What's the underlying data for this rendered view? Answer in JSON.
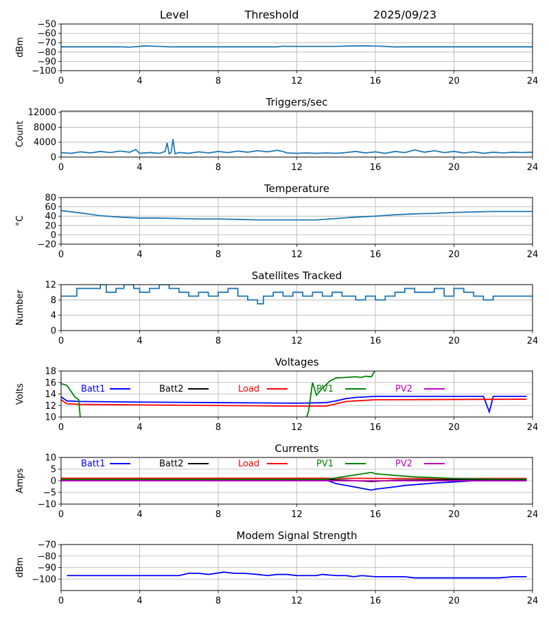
{
  "header": {
    "level_label": "Level",
    "threshold_label": "Threshold",
    "date": "2025/09/23"
  },
  "legend": [
    {
      "name": "Batt1",
      "color": "#0000ff"
    },
    {
      "name": "Batt2",
      "color": "#000000"
    },
    {
      "name": "Load",
      "color": "#ff0000"
    },
    {
      "name": "PV1",
      "color": "#008000"
    },
    {
      "name": "PV2",
      "color": "#bf00bf"
    }
  ],
  "chart_data": [
    {
      "type": "line",
      "title": "",
      "ylabel": "dBm",
      "xlim": [
        0,
        24
      ],
      "ylim": [
        -100,
        -50
      ],
      "xticks": [
        0,
        4,
        8,
        12,
        16,
        20,
        24
      ],
      "yticks": [
        -100,
        -90,
        -80,
        -70,
        -60,
        -50
      ],
      "grid": true,
      "series": [
        {
          "name": "Level",
          "color": "#1f77b4",
          "x": [
            0,
            1,
            2,
            3,
            3.5,
            4,
            4.2,
            5,
            5.5,
            6,
            7,
            8,
            9,
            10,
            11,
            11.3,
            11.5,
            12,
            13,
            14,
            14.8,
            15,
            15.5,
            16,
            16.5,
            17,
            17.5,
            18,
            19,
            20,
            21,
            22,
            23,
            24
          ],
          "y": [
            -74.5,
            -74.5,
            -74.5,
            -74.5,
            -74.8,
            -74,
            -73.5,
            -74,
            -74.5,
            -74.5,
            -74.5,
            -74.5,
            -74.5,
            -74.5,
            -74.5,
            -73.8,
            -74,
            -74,
            -74,
            -74,
            -73.5,
            -73.5,
            -73.4,
            -73.6,
            -74,
            -74.6,
            -74.5,
            -74.5,
            -74.5,
            -74.5,
            -74.5,
            -74.5,
            -74.5,
            -74.5
          ]
        }
      ]
    },
    {
      "type": "line",
      "title": "Triggers/sec",
      "ylabel": "Count",
      "xlim": [
        0,
        24
      ],
      "ylim": [
        0,
        12300
      ],
      "xticks": [
        0,
        4,
        8,
        12,
        16,
        20,
        24
      ],
      "yticks": [
        0,
        4000,
        8000,
        12000
      ],
      "grid": true,
      "series": [
        {
          "name": "Triggers",
          "color": "#1f77b4",
          "x": [
            0,
            0.5,
            1,
            1.5,
            2,
            2.5,
            3,
            3.5,
            3.8,
            4,
            4.5,
            5,
            5.3,
            5.4,
            5.5,
            5.6,
            5.7,
            5.8,
            6,
            6.5,
            7,
            7.5,
            8,
            8.5,
            9,
            9.5,
            10,
            10.5,
            11,
            11.3,
            11.5,
            12,
            12.5,
            13,
            13.5,
            14,
            14.5,
            15,
            15.5,
            16,
            16.5,
            17,
            17.5,
            18,
            18.5,
            19,
            19.5,
            20,
            20.5,
            21,
            21.5,
            22,
            22.5,
            23,
            23.5,
            24
          ],
          "y": [
            1200,
            1000,
            1400,
            1100,
            1500,
            1200,
            1600,
            1300,
            2000,
            1000,
            1200,
            1000,
            1500,
            3800,
            900,
            1200,
            4800,
            900,
            1200,
            1000,
            1400,
            1100,
            1500,
            1200,
            1600,
            1300,
            1700,
            1400,
            1800,
            1500,
            1100,
            1000,
            1100,
            1000,
            1100,
            1000,
            1200,
            1500,
            1100,
            1400,
            1000,
            1500,
            1200,
            1900,
            1300,
            1700,
            1200,
            1500,
            1100,
            1400,
            1000,
            1300,
            1100,
            1300,
            1200,
            1300
          ]
        }
      ]
    },
    {
      "type": "line",
      "title": "Temperature",
      "ylabel": "°C",
      "xlim": [
        0,
        24
      ],
      "ylim": [
        -20,
        80
      ],
      "xticks": [
        0,
        4,
        8,
        12,
        16,
        20,
        24
      ],
      "yticks": [
        -20,
        0,
        20,
        40,
        60,
        80
      ],
      "grid": true,
      "series": [
        {
          "name": "Temperature",
          "color": "#1f77b4",
          "x": [
            0,
            1,
            2,
            3,
            4,
            5,
            6,
            7,
            8,
            9,
            10,
            11,
            12,
            13,
            14,
            15,
            16,
            17,
            18,
            19,
            20,
            21,
            22,
            23,
            24
          ],
          "y": [
            52,
            47,
            41,
            38,
            36,
            36,
            35,
            34,
            34,
            33,
            32,
            32,
            32,
            32,
            35,
            38,
            40,
            43,
            45,
            46,
            48,
            49,
            50,
            50,
            50
          ]
        }
      ]
    },
    {
      "type": "line",
      "title": "Satellites Tracked",
      "ylabel": "Number",
      "xlim": [
        0,
        24
      ],
      "ylim": [
        0,
        12
      ],
      "xticks": [
        0,
        4,
        8,
        12,
        16,
        20,
        24
      ],
      "yticks": [
        0,
        4,
        8,
        12
      ],
      "grid": true,
      "series": [
        {
          "name": "Satellites",
          "color": "#1f77b4",
          "step": true,
          "x": [
            0,
            0.8,
            1.5,
            2,
            2.3,
            2.8,
            3.2,
            3.7,
            4,
            4.5,
            5,
            5.5,
            6,
            6.5,
            7,
            7.5,
            8,
            8.5,
            9,
            9.5,
            10,
            10.3,
            10.8,
            11.3,
            11.8,
            12.3,
            12.8,
            13.3,
            13.8,
            14.3,
            15,
            15.5,
            16,
            16.5,
            17,
            17.5,
            18,
            18.5,
            19,
            19.5,
            20,
            20.5,
            21,
            21.5,
            22,
            22.5,
            23,
            23.5,
            24
          ],
          "y": [
            9,
            11,
            11,
            12,
            10,
            11,
            12,
            11,
            10,
            11,
            12,
            11,
            10,
            9,
            10,
            9,
            10,
            11,
            9,
            8,
            7,
            9,
            10,
            9,
            10,
            9,
            10,
            9,
            10,
            9,
            8,
            9,
            8,
            9,
            10,
            11,
            10,
            10,
            11,
            9,
            11,
            10,
            9,
            8,
            9,
            9,
            9,
            9,
            9
          ]
        }
      ]
    },
    {
      "type": "line",
      "title": "Voltages",
      "ylabel": "Volts",
      "xlim": [
        0,
        24
      ],
      "ylim": [
        10,
        18
      ],
      "xticks": [
        0,
        4,
        8,
        12,
        16,
        20,
        24
      ],
      "yticks": [
        10,
        12,
        14,
        16,
        18
      ],
      "grid": true,
      "series": [
        {
          "name": "Batt1",
          "color": "#0000ff",
          "x": [
            0,
            0.3,
            1,
            4,
            8,
            12,
            13.5,
            14,
            14.5,
            15,
            16,
            21.5,
            21.8,
            22,
            23.7
          ],
          "y": [
            13.5,
            12.8,
            12.7,
            12.6,
            12.5,
            12.4,
            12.5,
            12.8,
            13.2,
            13.4,
            13.6,
            13.6,
            10.9,
            13.6,
            13.6
          ]
        },
        {
          "name": "Batt2",
          "color": "#000000",
          "x": [],
          "y": []
        },
        {
          "name": "Load",
          "color": "#ff0000",
          "x": [
            0,
            0.3,
            1,
            4,
            8,
            12,
            13.5,
            14,
            14.5,
            15,
            16,
            20,
            23.7
          ],
          "y": [
            13.0,
            12.3,
            12.2,
            12.1,
            12.0,
            11.9,
            11.9,
            12.3,
            12.7,
            12.8,
            13.0,
            13.05,
            13.1
          ]
        },
        {
          "name": "PV1",
          "color": "#008000",
          "x": [
            0,
            0.3,
            0.5,
            0.7,
            0.9,
            1.0,
            12.4,
            12.6,
            12.8,
            13.0,
            13.3,
            13.7,
            14,
            14.5,
            15,
            15.3,
            15.5,
            15.8,
            16,
            16.3
          ],
          "y": [
            15.8,
            15.5,
            14.5,
            13.5,
            13.0,
            9.0,
            9.0,
            11.0,
            16.0,
            13.8,
            15.0,
            16.3,
            16.8,
            16.9,
            17.0,
            16.9,
            17.1,
            17.0,
            18.2,
            19
          ]
        },
        {
          "name": "PV2",
          "color": "#bf00bf",
          "x": [],
          "y": []
        }
      ]
    },
    {
      "type": "line",
      "title": "Currents",
      "ylabel": "Amps",
      "xlim": [
        0,
        24
      ],
      "ylim": [
        -10,
        10
      ],
      "xticks": [
        0,
        4,
        8,
        12,
        16,
        20,
        24
      ],
      "yticks": [
        -10,
        -5,
        0,
        5,
        10
      ],
      "grid": true,
      "series": [
        {
          "name": "Batt1",
          "color": "#0000ff",
          "x": [
            0,
            1,
            4,
            8,
            12,
            13.5,
            14,
            15.8,
            16,
            17,
            17.5,
            19,
            20,
            21,
            22,
            23.7
          ],
          "y": [
            0.4,
            0.4,
            0.4,
            0.4,
            0.4,
            0.3,
            -1.2,
            -4,
            -3.6,
            -2.6,
            -2,
            -1,
            -0.5,
            0,
            0,
            0
          ]
        },
        {
          "name": "Batt2",
          "color": "#000000",
          "x": [
            0,
            13.5,
            15.8,
            17,
            20,
            23.7
          ],
          "y": [
            0.6,
            0.6,
            -0.3,
            0.2,
            0.5,
            0.5
          ]
        },
        {
          "name": "Load",
          "color": "#ff0000",
          "x": [
            0,
            4,
            8,
            12,
            16,
            20,
            23.7
          ],
          "y": [
            1.1,
            1.1,
            1.1,
            1.1,
            1.0,
            1.0,
            1.0
          ]
        },
        {
          "name": "PV1",
          "color": "#008000",
          "x": [
            0,
            13.5,
            15.8,
            16,
            17,
            18,
            20,
            22,
            23.7
          ],
          "y": [
            0.6,
            0.6,
            3.6,
            3.0,
            2.3,
            1.7,
            1.0,
            0.7,
            0.7
          ]
        },
        {
          "name": "PV2",
          "color": "#bf00bf",
          "x": [
            0,
            23.7
          ],
          "y": [
            0,
            0
          ]
        }
      ]
    },
    {
      "type": "line",
      "title": "Modem Signal Strength",
      "ylabel": "dBm",
      "xlim": [
        0,
        24
      ],
      "ylim": [
        -110,
        -70
      ],
      "xticks": [
        0,
        4,
        8,
        12,
        16,
        20,
        24
      ],
      "yticks": [
        -100,
        -90,
        -80,
        -70
      ],
      "grid": true,
      "series": [
        {
          "name": "Modem",
          "color": "#0000ff",
          "x": [
            0.3,
            1,
            2,
            3,
            4,
            5,
            6,
            6.5,
            7,
            7.5,
            8.3,
            8.8,
            9.3,
            10,
            10.5,
            11,
            11.5,
            12,
            13,
            13.3,
            14,
            14.5,
            14.9,
            15.3,
            16,
            17,
            17.5,
            18,
            19,
            20,
            21,
            22.3,
            23,
            23.7
          ],
          "y": [
            -97,
            -97,
            -97,
            -97,
            -97,
            -97,
            -97,
            -95,
            -95,
            -96,
            -94,
            -95,
            -95,
            -96,
            -97,
            -96,
            -96,
            -97,
            -97,
            -96,
            -97,
            -97,
            -98,
            -97,
            -98,
            -98,
            -98,
            -99,
            -99,
            -99,
            -99,
            -99,
            -98,
            -98
          ]
        }
      ]
    }
  ]
}
